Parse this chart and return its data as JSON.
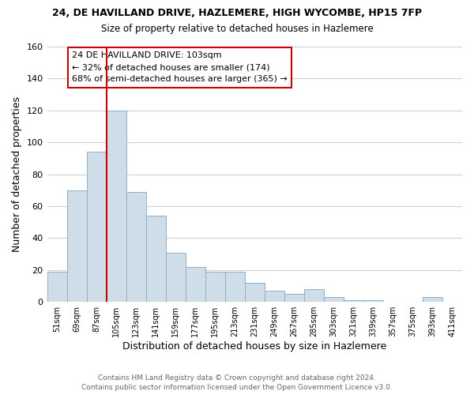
{
  "title": "24, DE HAVILLAND DRIVE, HAZLEMERE, HIGH WYCOMBE, HP15 7FP",
  "subtitle": "Size of property relative to detached houses in Hazlemere",
  "xlabel": "Distribution of detached houses by size in Hazlemere",
  "ylabel": "Number of detached properties",
  "bar_color": "#cfdde8",
  "bar_edge_color": "#8eb0c8",
  "vline_color": "#cc0000",
  "vline_x_index": 3,
  "categories": [
    "51sqm",
    "69sqm",
    "87sqm",
    "105sqm",
    "123sqm",
    "141sqm",
    "159sqm",
    "177sqm",
    "195sqm",
    "213sqm",
    "231sqm",
    "249sqm",
    "267sqm",
    "285sqm",
    "303sqm",
    "321sqm",
    "339sqm",
    "357sqm",
    "375sqm",
    "393sqm",
    "411sqm"
  ],
  "values": [
    19,
    70,
    94,
    120,
    69,
    54,
    31,
    22,
    19,
    19,
    12,
    7,
    5,
    8,
    3,
    1,
    1,
    0,
    0,
    3,
    0
  ],
  "ylim": [
    0,
    160
  ],
  "yticks": [
    0,
    20,
    40,
    60,
    80,
    100,
    120,
    140,
    160
  ],
  "annotation_title": "24 DE HAVILLAND DRIVE: 103sqm",
  "annotation_line1": "← 32% of detached houses are smaller (174)",
  "annotation_line2": "68% of semi-detached houses are larger (365) →",
  "annotation_box_color": "#ffffff",
  "annotation_box_edge": "#cc0000",
  "footer_line1": "Contains HM Land Registry data © Crown copyright and database right 2024.",
  "footer_line2": "Contains public sector information licensed under the Open Government Licence v3.0.",
  "background_color": "#ffffff",
  "grid_color": "#c8d4e0"
}
